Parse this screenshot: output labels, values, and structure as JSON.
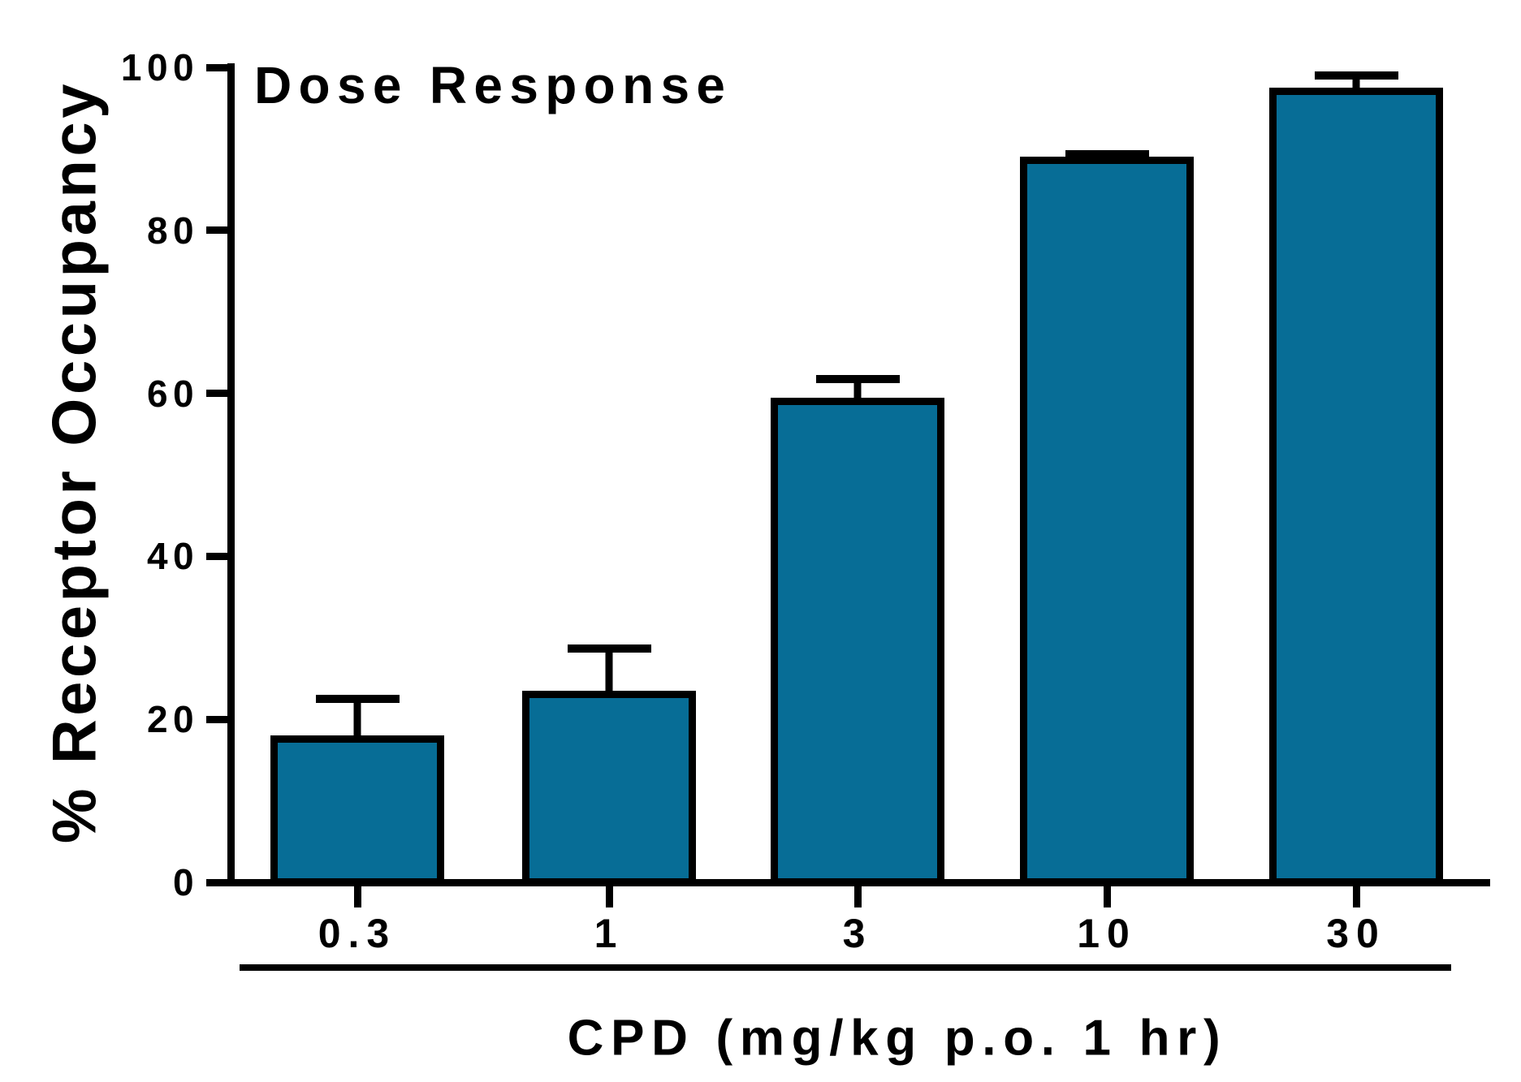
{
  "chart_data": {
    "type": "bar",
    "title": "Dose Response",
    "xlabel": "CPD (mg/kg p.o. 1 hr)",
    "ylabel": "% Receptor Occupancy",
    "categories": [
      "0.3",
      "1",
      "3",
      "10",
      "30"
    ],
    "values": [
      18,
      23.5,
      59.5,
      89,
      97.5
    ],
    "errors_plus": [
      5,
      5.7,
      2.8,
      0.8,
      2
    ],
    "error_tops": [
      23,
      29.2,
      62.3,
      89.8,
      99.5
    ],
    "yticks": [
      0,
      20,
      40,
      60,
      80,
      100
    ],
    "ylim": [
      0,
      100
    ],
    "bar_color": "#076D96",
    "bar_border_color": "#000000",
    "axis_color": "#000000",
    "background_color": "#FFFFFF",
    "grid": false,
    "legend": "none",
    "error_bar_direction": "up-only"
  }
}
